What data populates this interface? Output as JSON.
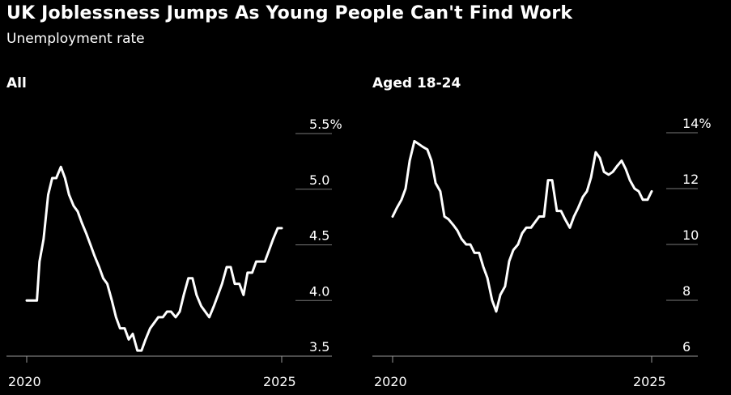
{
  "title": "UK Joblessness Jumps As Young People Can't Find Work",
  "subtitle": "Unemployment rate",
  "chart_data": [
    {
      "type": "line",
      "panel_title": "All",
      "x_tick_labels": [
        "2020",
        "2025"
      ],
      "y_tick_labels": [
        "5.5%",
        "5.0",
        "4.5",
        "4.0",
        "3.5"
      ],
      "ylim": [
        3.5,
        5.5
      ],
      "xlim": [
        2020,
        2025
      ],
      "series": [
        {
          "x": [
            2020.0,
            2020.1,
            2020.2,
            2020.25,
            2020.33,
            2020.42,
            2020.5,
            2020.58,
            2020.67,
            2020.75,
            2020.83,
            2020.92,
            2021.0,
            2021.08,
            2021.17,
            2021.25,
            2021.33,
            2021.42,
            2021.5,
            2021.58,
            2021.67,
            2021.75,
            2021.83,
            2021.92,
            2022.0,
            2022.08,
            2022.17,
            2022.25,
            2022.33,
            2022.42,
            2022.5,
            2022.58,
            2022.67,
            2022.75,
            2022.83,
            2022.92,
            2023.0,
            2023.08,
            2023.17,
            2023.25,
            2023.33,
            2023.42,
            2023.5,
            2023.58,
            2023.67,
            2023.75,
            2023.83,
            2023.92,
            2024.0,
            2024.08,
            2024.17,
            2024.25,
            2024.33,
            2024.42,
            2024.5,
            2024.58,
            2024.67,
            2024.75,
            2024.83,
            2024.92,
            2025.0
          ],
          "y": [
            4.0,
            4.0,
            4.0,
            4.35,
            4.55,
            4.95,
            5.1,
            5.1,
            5.2,
            5.1,
            4.95,
            4.85,
            4.8,
            4.7,
            4.6,
            4.5,
            4.4,
            4.3,
            4.2,
            4.15,
            4.0,
            3.85,
            3.75,
            3.75,
            3.65,
            3.7,
            3.55,
            3.55,
            3.65,
            3.75,
            3.8,
            3.85,
            3.85,
            3.9,
            3.9,
            3.85,
            3.9,
            4.05,
            4.2,
            4.2,
            4.05,
            3.95,
            3.9,
            3.85,
            3.95,
            4.05,
            4.15,
            4.3,
            4.3,
            4.15,
            4.15,
            4.05,
            4.25,
            4.25,
            4.35,
            4.35,
            4.35,
            4.45,
            4.55,
            4.65,
            4.65
          ]
        }
      ]
    },
    {
      "type": "line",
      "panel_title": "Aged 18-24",
      "x_tick_labels": [
        "2020",
        "2025"
      ],
      "y_tick_labels": [
        "14%",
        "12",
        "10",
        "8",
        "6"
      ],
      "ylim": [
        6,
        14
      ],
      "xlim": [
        2020,
        2025
      ],
      "series": [
        {
          "x": [
            2020.0,
            2020.08,
            2020.17,
            2020.25,
            2020.33,
            2020.42,
            2020.5,
            2020.58,
            2020.67,
            2020.75,
            2020.83,
            2020.92,
            2021.0,
            2021.08,
            2021.17,
            2021.25,
            2021.33,
            2021.42,
            2021.5,
            2021.58,
            2021.67,
            2021.75,
            2021.83,
            2021.92,
            2022.0,
            2022.08,
            2022.17,
            2022.25,
            2022.33,
            2022.42,
            2022.5,
            2022.58,
            2022.67,
            2022.75,
            2022.83,
            2022.92,
            2023.0,
            2023.08,
            2023.17,
            2023.25,
            2023.33,
            2023.42,
            2023.5,
            2023.58,
            2023.67,
            2023.75,
            2023.83,
            2023.92,
            2024.0,
            2024.08,
            2024.17,
            2024.25,
            2024.33,
            2024.42,
            2024.5,
            2024.58,
            2024.67,
            2024.75,
            2024.83,
            2024.92,
            2025.0
          ],
          "y": [
            11.0,
            11.3,
            11.6,
            12.0,
            13.0,
            13.7,
            13.6,
            13.5,
            13.4,
            13.0,
            12.2,
            11.9,
            11.0,
            10.9,
            10.7,
            10.5,
            10.2,
            10.0,
            10.0,
            9.7,
            9.7,
            9.2,
            8.8,
            8.0,
            7.6,
            8.2,
            8.5,
            9.4,
            9.8,
            10.0,
            10.4,
            10.6,
            10.6,
            10.8,
            11.0,
            11.0,
            12.3,
            12.3,
            11.2,
            11.2,
            10.9,
            10.6,
            11.0,
            11.3,
            11.7,
            11.9,
            12.4,
            13.3,
            13.1,
            12.6,
            12.5,
            12.6,
            12.8,
            13.0,
            12.7,
            12.3,
            12.0,
            11.9,
            11.6,
            11.6,
            11.9
          ]
        }
      ]
    }
  ]
}
